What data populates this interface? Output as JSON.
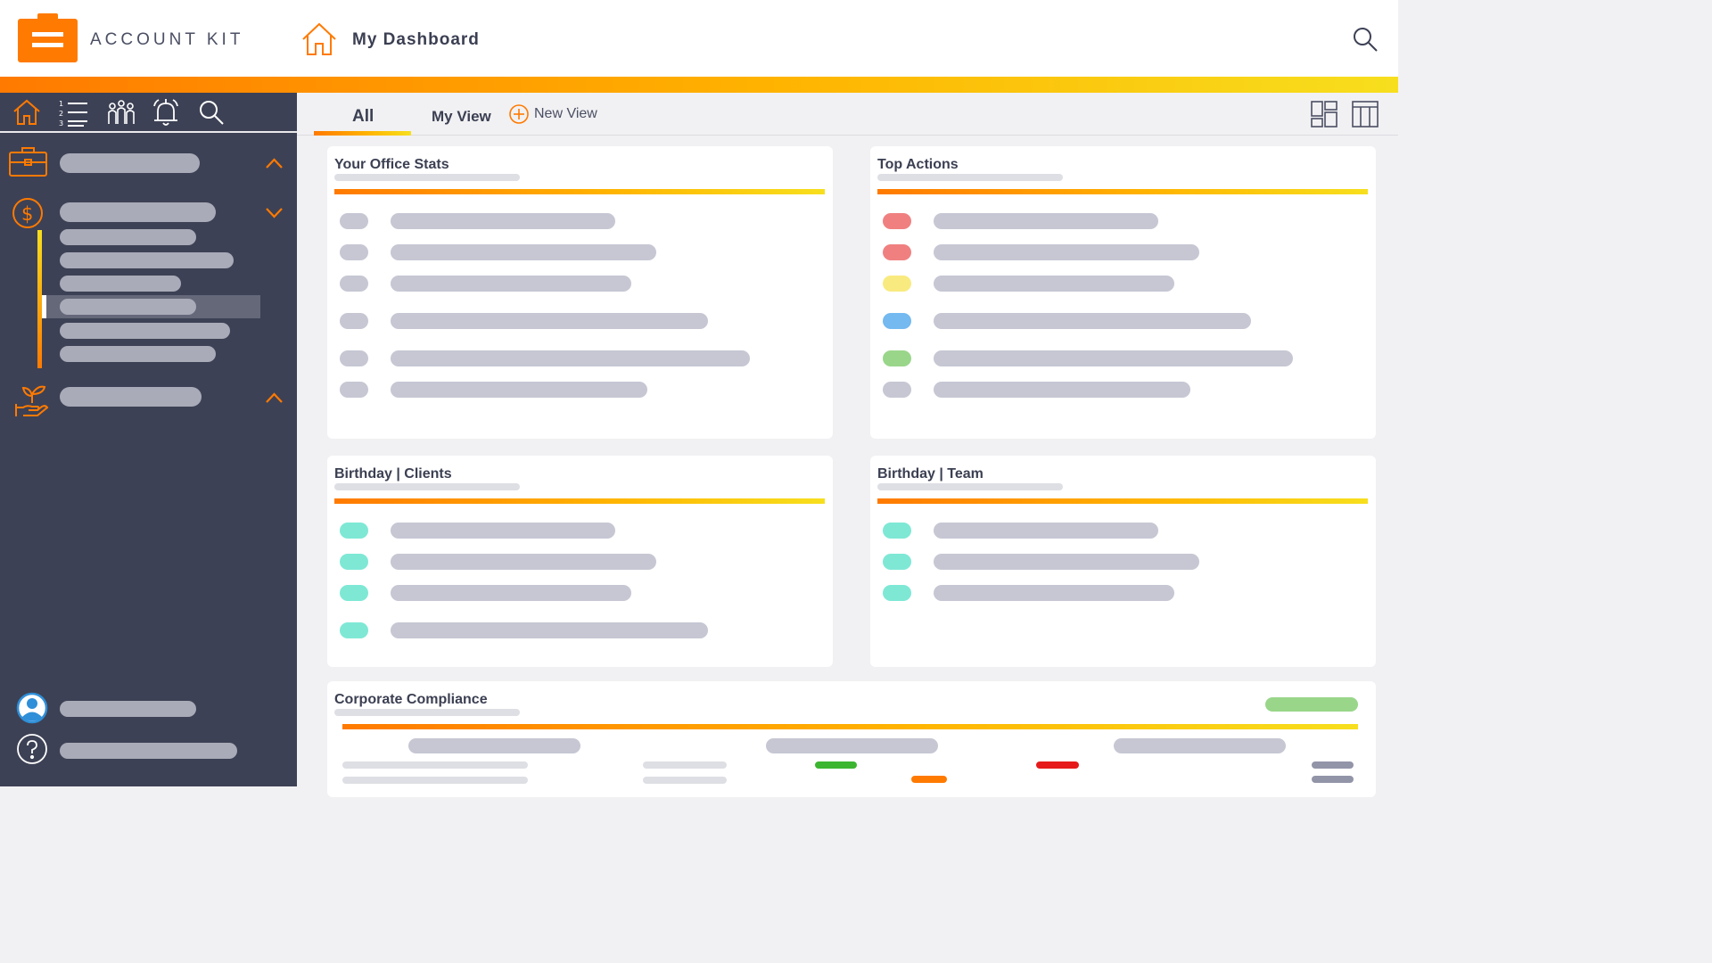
{
  "header": {
    "brand": "ACCOUNT KIT",
    "title": "My Dashboard",
    "icons": {
      "logo": "briefcase-logo",
      "home": "home-icon",
      "search": "search-icon"
    }
  },
  "sidebar": {
    "top_icons": [
      "home-icon",
      "numbered-list-icon",
      "team-icon",
      "alarm-bell-icon",
      "search-icon"
    ],
    "sections": [
      {
        "icon": "briefcase-icon",
        "expanded": false
      },
      {
        "icon": "dollar-coin-icon",
        "expanded": true,
        "sub_items": 6,
        "selected": 3
      },
      {
        "icon": "plant-hand-icon",
        "expanded": false
      }
    ],
    "footer_icons": [
      "user-avatar-icon",
      "help-icon"
    ]
  },
  "tabs": {
    "items": [
      {
        "label": "All",
        "active": true
      },
      {
        "label": "My View",
        "active": false
      }
    ],
    "new_view": "New View",
    "layout_icons": [
      "grid-layout-icon",
      "column-layout-icon"
    ]
  },
  "cards": {
    "office_stats": {
      "title": "Your Office Stats"
    },
    "top_actions": {
      "title": "Top Actions"
    },
    "birthday_clients": {
      "title": "Birthday | Clients"
    },
    "birthday_team": {
      "title": "Birthday | Team"
    },
    "compliance": {
      "title": "Corporate Compliance"
    }
  },
  "colors": {
    "accent": "#ff7a00",
    "accent_end": "#f7df1e",
    "sidebar_bg": "#3d4155",
    "placeholder": "#c6c7d3",
    "red": "#f08080",
    "yellow": "#f9ea80",
    "blue": "#74b9f0",
    "green": "#99d68a",
    "teal": "#7ee8d5"
  }
}
